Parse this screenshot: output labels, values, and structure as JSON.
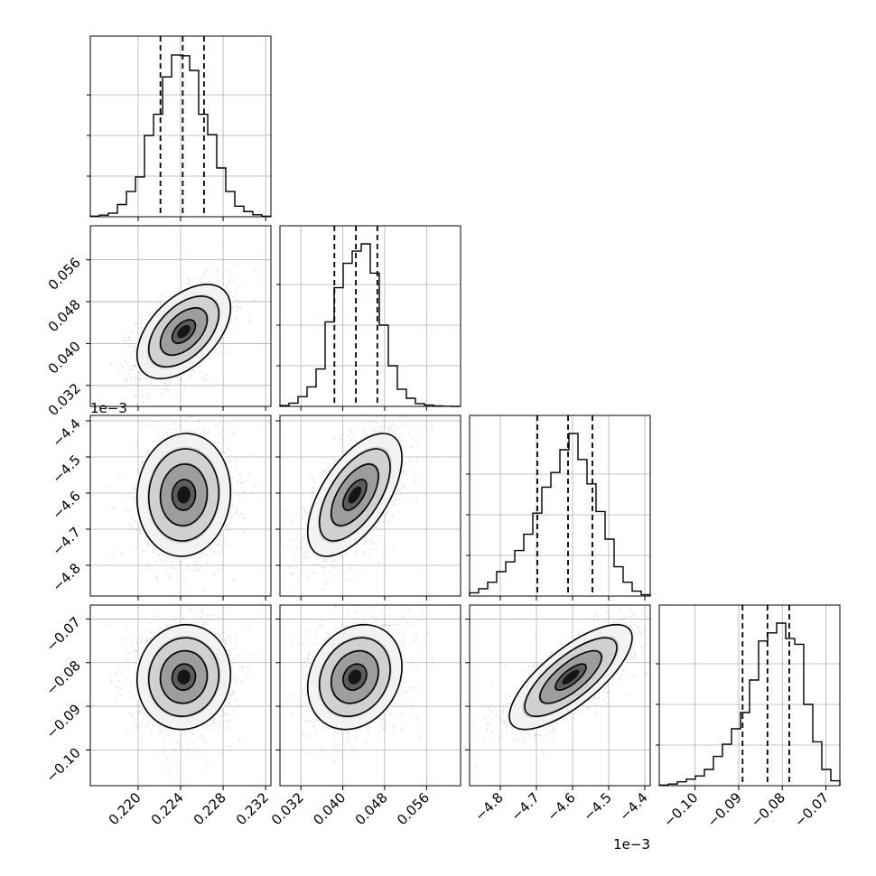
{
  "chart_data": {
    "type": "corner",
    "grid": true,
    "params": [
      {
        "ticks": [
          0.22,
          0.224,
          0.228,
          0.232
        ],
        "tick_labels": [
          "0.220",
          "0.224",
          "0.228",
          "0.232"
        ],
        "range": [
          0.2155,
          0.2325
        ],
        "quantiles": [
          0.2221,
          0.2242,
          0.2262
        ],
        "offset_text": ""
      },
      {
        "ticks": [
          0.032,
          0.04,
          0.048,
          0.056
        ],
        "tick_labels": [
          "0.032",
          "0.040",
          "0.048",
          "0.056"
        ],
        "range": [
          0.028,
          0.0625
        ],
        "quantiles": [
          0.0384,
          0.0425,
          0.0466
        ],
        "offset_text": ""
      },
      {
        "ticks": [
          -4.8,
          -4.7,
          -4.6,
          -4.5,
          -4.4
        ],
        "tick_labels": [
          "−4.8",
          "−4.7",
          "−4.6",
          "−4.5",
          "−4.4"
        ],
        "range": [
          -4.885,
          -4.385
        ],
        "quantiles": [
          -4.6975,
          -4.6125,
          -4.545
        ],
        "offset_text": "1e−3"
      },
      {
        "ticks": [
          -0.1,
          -0.09,
          -0.08,
          -0.07
        ],
        "tick_labels": [
          "−0.10",
          "−0.09",
          "−0.08",
          "−0.07"
        ],
        "range": [
          -0.1082,
          -0.0668
        ],
        "quantiles": [
          -0.0891,
          -0.0834,
          -0.0784
        ],
        "offset_text": ""
      }
    ],
    "histograms": [
      [
        0.004,
        0.01,
        0.022,
        0.075,
        0.155,
        0.245,
        0.5,
        0.63,
        0.86,
        0.995,
        0.99,
        0.9,
        0.63,
        0.505,
        0.3,
        0.155,
        0.065,
        0.032,
        0.012,
        0.003
      ],
      [
        0.005,
        0.02,
        0.06,
        0.12,
        0.23,
        0.52,
        0.73,
        0.88,
        0.955,
        1.0,
        0.82,
        0.5,
        0.25,
        0.105,
        0.05,
        0.017,
        0.008,
        0.003,
        0.001,
        0.0
      ],
      [
        0.02,
        0.045,
        0.085,
        0.15,
        0.21,
        0.28,
        0.38,
        0.51,
        0.67,
        0.76,
        0.9,
        1.0,
        0.84,
        0.69,
        0.52,
        0.35,
        0.18,
        0.085,
        0.03,
        0.008
      ],
      [
        0.004,
        0.01,
        0.024,
        0.04,
        0.06,
        0.1,
        0.18,
        0.255,
        0.35,
        0.45,
        0.65,
        0.89,
        0.94,
        1.0,
        0.905,
        0.87,
        0.5,
        0.27,
        0.1,
        0.03
      ]
    ],
    "pairs": [
      {
        "row": 1,
        "col": 0,
        "center": [
          0.2243,
          0.0423
        ],
        "sd": [
          0.0022,
          0.0045
        ],
        "rho": 0.5
      },
      {
        "row": 2,
        "col": 0,
        "center": [
          0.2243,
          -4.605
        ],
        "sd": [
          0.0022,
          0.085
        ],
        "rho": 0.05
      },
      {
        "row": 2,
        "col": 1,
        "center": [
          0.0423,
          -4.605
        ],
        "sd": [
          0.0045,
          0.085
        ],
        "rho": 0.6
      },
      {
        "row": 3,
        "col": 0,
        "center": [
          0.2243,
          -0.0833
        ],
        "sd": [
          0.0022,
          0.006
        ],
        "rho": 0.05
      },
      {
        "row": 3,
        "col": 1,
        "center": [
          0.0423,
          -0.0833
        ],
        "sd": [
          0.0045,
          0.006
        ],
        "rho": 0.2
      },
      {
        "row": 3,
        "col": 2,
        "center": [
          -4.605,
          -0.0833
        ],
        "sd": [
          0.085,
          0.006
        ],
        "rho": 0.75
      }
    ],
    "contour_levels_sigma": [
      0.5,
      1.0,
      1.5,
      2.0
    ]
  }
}
